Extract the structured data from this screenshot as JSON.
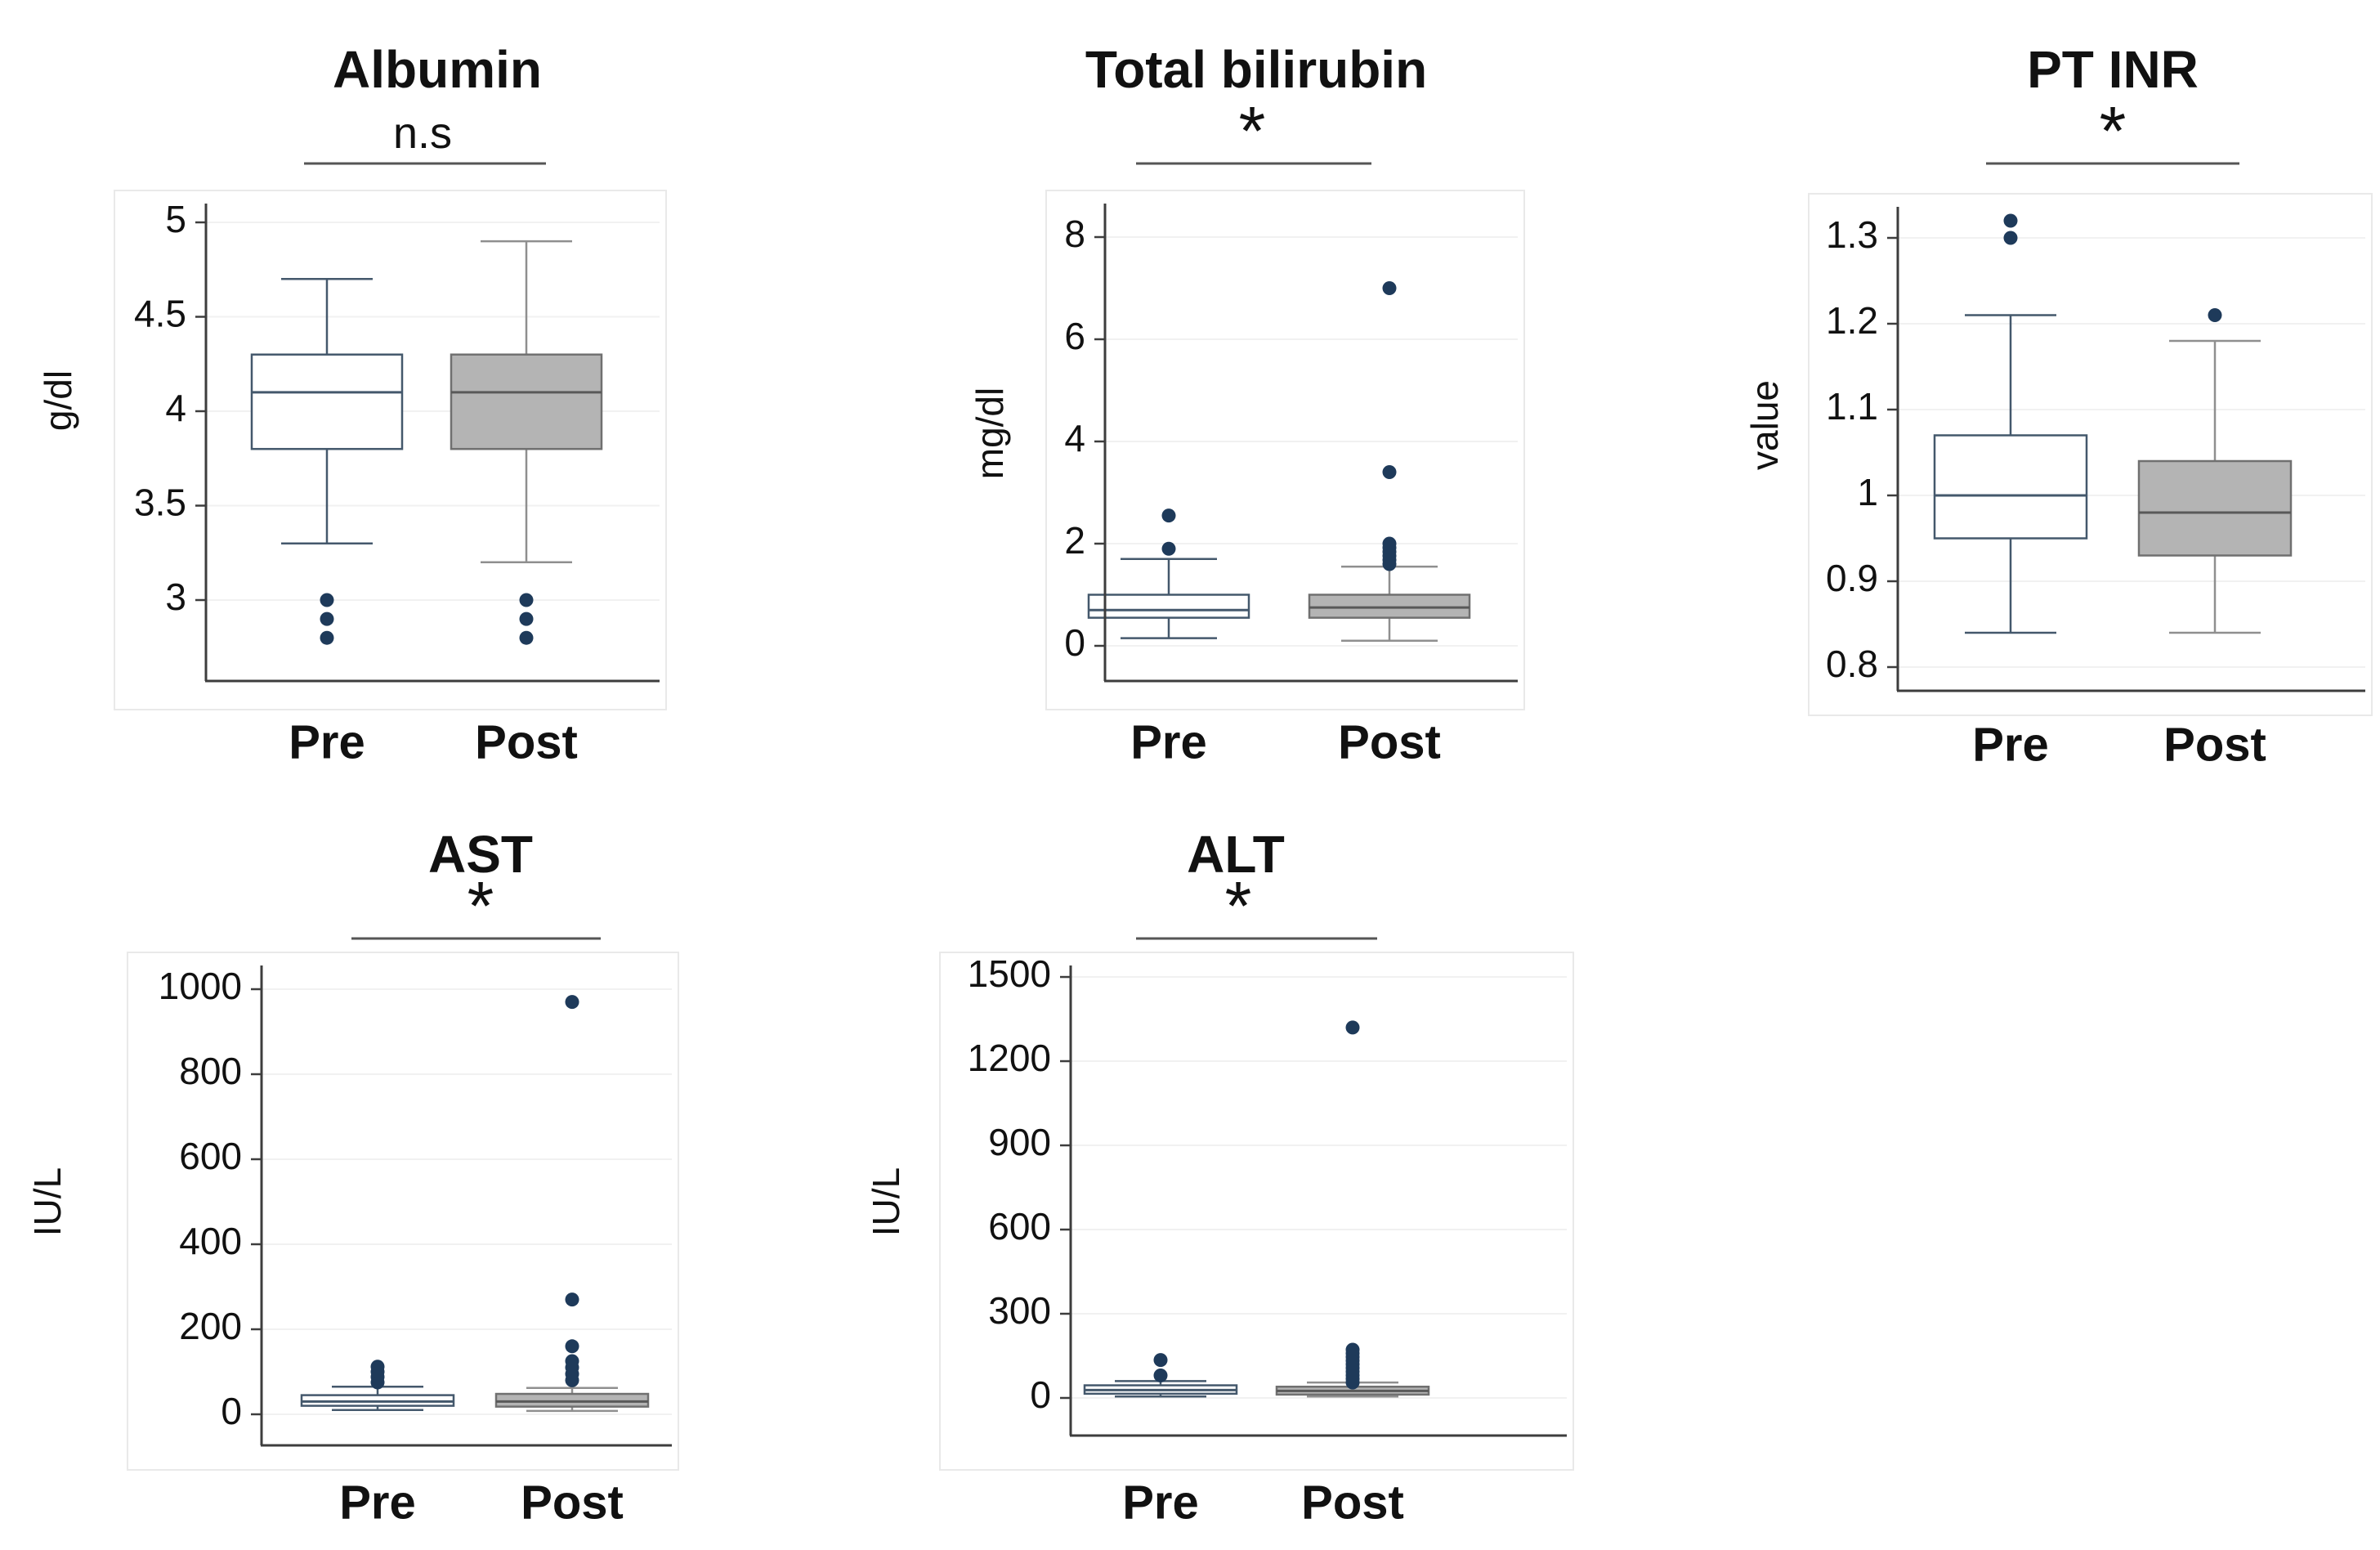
{
  "figure": {
    "background": "#ffffff",
    "description": "Five box plots comparing Pre vs Post liver function labs"
  },
  "colors": {
    "text": "#111111",
    "pre_stroke": "#44586c",
    "pre_fill": "#ffffff",
    "post_fill": "#b4b4b4",
    "post_stroke": "#707070",
    "post_whisker": "#8f8f8f",
    "post_median": "#595959",
    "outlier": "#1e3a5a",
    "grid": "#f1f1f1",
    "axis": "#3d3d3d",
    "panel_border": "#e9e9e9",
    "sig_line": "#555555"
  },
  "chart_data": [
    {
      "type": "box",
      "title": "Albumin",
      "significance": "n.s",
      "ylabel": "g/dl",
      "yticks": [
        3,
        3.5,
        4,
        4.5,
        5
      ],
      "ylim": [
        2.6,
        5.25
      ],
      "grid": true,
      "categories": [
        "Pre",
        "Post"
      ],
      "series": [
        {
          "name": "Pre",
          "whisker_low": 3.3,
          "q1": 3.8,
          "median": 4.1,
          "q3": 4.3,
          "whisker_high": 4.7,
          "outliers": [
            3.0,
            2.9,
            2.8
          ]
        },
        {
          "name": "Post",
          "whisker_low": 3.2,
          "q1": 3.8,
          "median": 4.1,
          "q3": 4.3,
          "whisker_high": 4.9,
          "outliers": [
            3.0,
            2.9,
            2.8
          ]
        }
      ]
    },
    {
      "type": "box",
      "title": "Total bilirubin",
      "significance": "*",
      "ylabel": "mg/dl",
      "yticks": [
        0,
        2,
        4,
        6,
        8
      ],
      "ylim": [
        -0.7,
        8.6
      ],
      "grid": true,
      "categories": [
        "Pre",
        "Post"
      ],
      "series": [
        {
          "name": "Pre",
          "whisker_low": 0.15,
          "q1": 0.55,
          "median": 0.7,
          "q3": 1.0,
          "whisker_high": 1.7,
          "outliers": [
            1.9,
            2.55
          ]
        },
        {
          "name": "Post",
          "whisker_low": 0.1,
          "q1": 0.55,
          "median": 0.75,
          "q3": 1.0,
          "whisker_high": 1.55,
          "outliers": [
            1.6,
            1.68,
            1.76,
            1.84,
            1.92,
            2.0,
            3.4,
            7.0
          ]
        }
      ]
    },
    {
      "type": "box",
      "title": "PT INR",
      "significance": "*",
      "ylabel": "value",
      "yticks": [
        0.8,
        0.9,
        1,
        1.1,
        1.2,
        1.3
      ],
      "ylim": [
        0.77,
        1.36
      ],
      "grid": true,
      "categories": [
        "Pre",
        "Post"
      ],
      "series": [
        {
          "name": "Pre",
          "whisker_low": 0.84,
          "q1": 0.95,
          "median": 1.0,
          "q3": 1.07,
          "whisker_high": 1.21,
          "outliers": [
            1.3,
            1.32
          ]
        },
        {
          "name": "Post",
          "whisker_low": 0.84,
          "q1": 0.93,
          "median": 0.98,
          "q3": 1.04,
          "whisker_high": 1.18,
          "outliers": [
            1.21
          ]
        }
      ]
    },
    {
      "type": "box",
      "title": "AST",
      "significance": "*",
      "ylabel": "IU/L",
      "yticks": [
        0,
        200,
        400,
        600,
        800,
        1000
      ],
      "ylim": [
        -75,
        1090
      ],
      "grid": true,
      "categories": [
        "Pre",
        "Post"
      ],
      "series": [
        {
          "name": "Pre",
          "whisker_low": 10,
          "q1": 20,
          "median": 30,
          "q3": 45,
          "whisker_high": 65,
          "outliers": [
            75,
            88,
            100,
            112
          ]
        },
        {
          "name": "Post",
          "whisker_low": 8,
          "q1": 18,
          "median": 30,
          "q3": 48,
          "whisker_high": 62,
          "outliers": [
            80,
            95,
            110,
            125,
            160,
            270,
            970
          ]
        }
      ]
    },
    {
      "type": "box",
      "title": "ALT",
      "significance": "*",
      "ylabel": "IU/L",
      "yticks": [
        0,
        300,
        600,
        900,
        1200,
        1500
      ],
      "ylim": [
        -160,
        1600
      ],
      "grid": true,
      "categories": [
        "Pre",
        "Post"
      ],
      "series": [
        {
          "name": "Pre",
          "whisker_low": 5,
          "q1": 15,
          "median": 28,
          "q3": 45,
          "whisker_high": 60,
          "outliers": [
            80,
            135
          ]
        },
        {
          "name": "Post",
          "whisker_low": 5,
          "q1": 12,
          "median": 25,
          "q3": 40,
          "whisker_high": 55,
          "outliers": [
            55,
            68,
            81,
            94,
            107,
            120,
            133,
            146,
            159,
            172,
            1320
          ]
        }
      ]
    }
  ]
}
